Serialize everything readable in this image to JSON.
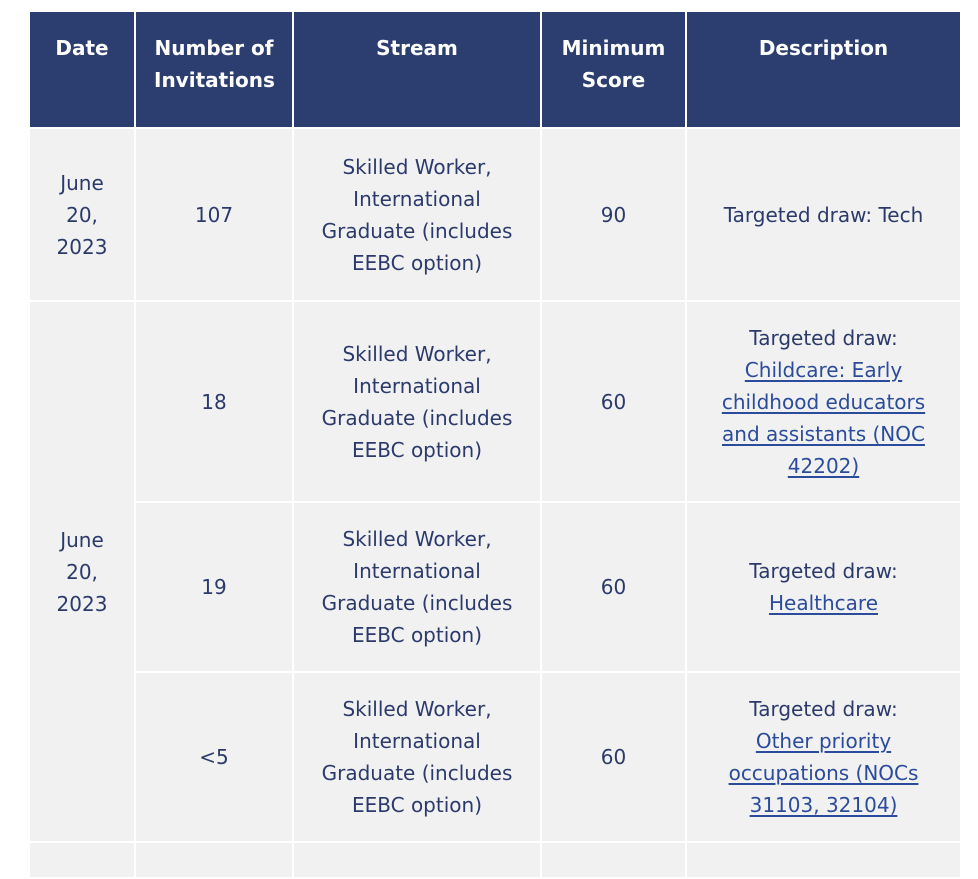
{
  "table": {
    "headers": {
      "date": "Date",
      "invitations": "Number of Invitations",
      "stream": "Stream",
      "score": "Minimum Score",
      "description": "Description"
    },
    "rows": [
      {
        "date": "June 20, 2023",
        "invitations": "107",
        "stream": "Skilled Worker, International Graduate (includes EEBC option)",
        "score": "90",
        "desc_text": "Targeted draw: Tech",
        "desc_link": ""
      },
      {
        "date": "June 20, 2023",
        "invitations": "18",
        "stream": "Skilled Worker, International Graduate (includes EEBC option)",
        "score": "60",
        "desc_text": "Targeted draw:",
        "desc_link": "Childcare: Early childhood educators and assistants (NOC 42202)"
      },
      {
        "invitations": "19",
        "stream": "Skilled Worker, International Graduate (includes EEBC option)",
        "score": "60",
        "desc_text": "Targeted draw:",
        "desc_link": "Healthcare"
      },
      {
        "invitations": "<5",
        "stream": "Skilled Worker, International Graduate (includes EEBC option)",
        "score": "60",
        "desc_text": "Targeted draw:",
        "desc_link": "Other priority occupations (NOCs 31103, 32104)"
      }
    ]
  },
  "colors": {
    "header_bg": "#2c3e70",
    "cell_bg": "#f1f1f1",
    "text": "#2b3a6b",
    "link": "#2b4b9b"
  }
}
